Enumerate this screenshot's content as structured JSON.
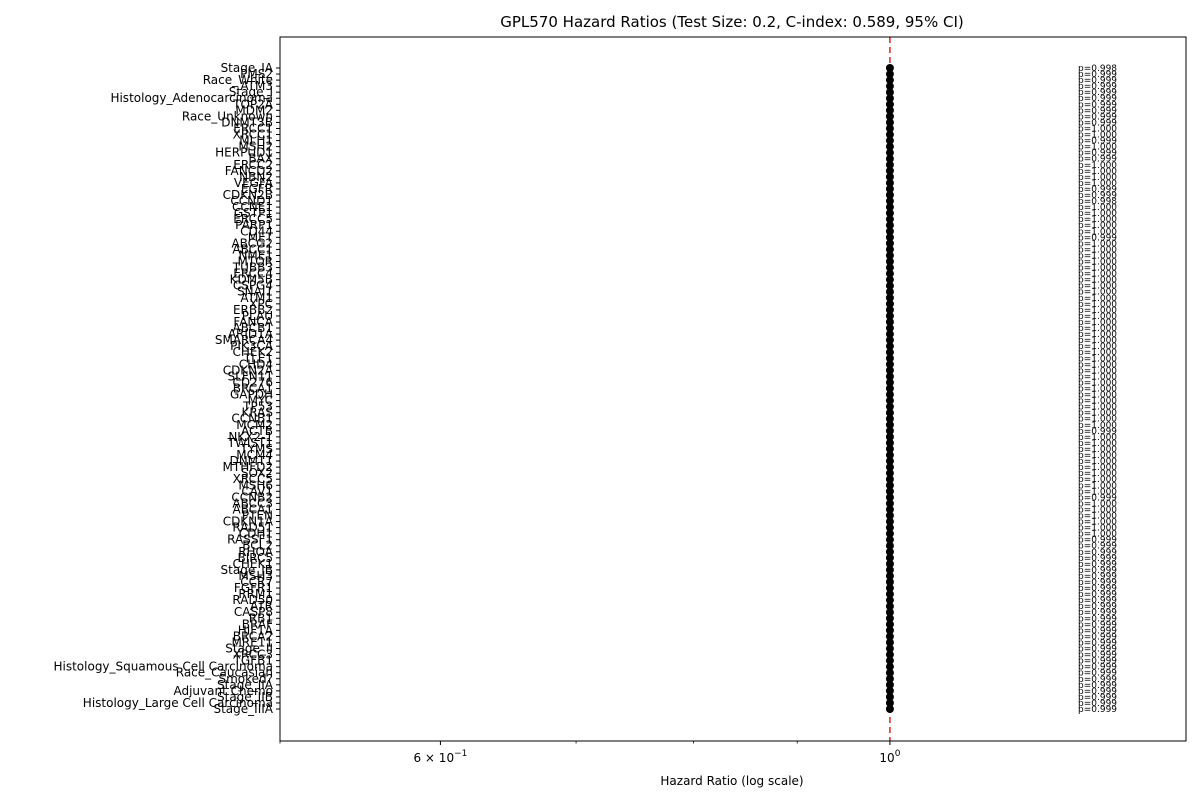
{
  "chart_data": {
    "type": "scatter",
    "title": "GPL570 Hazard Ratios (Test Size: 0.2, C-index: 0.589, 95% CI)",
    "xlabel": "Hazard Ratio (log scale)",
    "ylabel": "",
    "x_scale": "log",
    "xlim": [
      0.5,
      1.4
    ],
    "x_ticks": [
      {
        "value": 0.6,
        "label_base": "6 × 10",
        "label_exp": "−1"
      },
      {
        "value": 1.0,
        "label_base": "10",
        "label_exp": "0"
      }
    ],
    "x_minor_ticks": [
      0.5,
      0.7,
      0.8,
      0.9
    ],
    "reference_line": {
      "x": 1.0,
      "color": "#d62728",
      "style": "dashed"
    },
    "marker_color": "#000000",
    "grid": false,
    "legend": "none",
    "categories": [
      "Stage_IA",
      "PMS2",
      "Race_White",
      "ATM3",
      "Stage_I",
      "Histology_Adenocarcinoma",
      "TOP2A",
      "MDM2",
      "Race_Unknown",
      "DNMT3B",
      "ERCC1",
      "XRCC1",
      "MLH1",
      "MSH2",
      "HERPUD1",
      "BAX",
      "ERCC2",
      "FANCD2",
      "NBN2",
      "VEGFA",
      "EGFR",
      "CDKN2B",
      "CCND1",
      "CCNE1",
      "GSTP1",
      "ERCC5",
      "PARP1",
      "CD44",
      "MET",
      "ABCG2",
      "ABCC1",
      "NME1",
      "MTOR",
      "TUBB3",
      "ERCC4",
      "KDM5B",
      "CSPG4",
      "SNAI1",
      "ATM1",
      "XPC",
      "ERBB2",
      "PLAU",
      "FANCA",
      "ABCB1",
      "ARID1A",
      "SMARCA4",
      "PIK3CA",
      "CHEK2",
      "TLE1",
      "CHD4",
      "CDKN2A",
      "SLFN11",
      "CD276",
      "BRCA1",
      "GAPDH",
      "MYC",
      "TP53",
      "KRAS",
      "CCNB1",
      "MCM2",
      "ACTB",
      "NKX2-1",
      "TWIST1",
      "TYMS",
      "MCM4",
      "DNMT1",
      "MTHFD2",
      "SOX2",
      "XRCC5",
      "MSH6",
      "CAV1",
      "CCNB2",
      "ABCC3",
      "ABCA1",
      "PTEN",
      "CDKN1A",
      "RAD51",
      "CDH1",
      "RASSF1",
      "BCL2",
      "RHOA",
      "BIRC5",
      "CHEK1",
      "Stage_IB",
      "MSH3",
      "CCR7",
      "FGFR1",
      "RRM1",
      "RAD50",
      "ATR",
      "CASP8",
      "RB1",
      "BRAF",
      "HIF1A",
      "BRCA2",
      "MRE11",
      "Stage_II",
      "XRCC3",
      "TGFB1",
      "Histology_Squamous Cell Carcinoma",
      "Race_Caucasian",
      "Smoked?",
      "Stage_IIA",
      "Adjuvant Chemo",
      "Stage_IIB",
      "Histology_Large Cell Carcinoma",
      "Stage_IIIA"
    ],
    "hazard_ratios": [
      1,
      1,
      1,
      1,
      1,
      1,
      1,
      1,
      1,
      1,
      1,
      1,
      1,
      1,
      1,
      1,
      1,
      1,
      1,
      1,
      1,
      1,
      1,
      1,
      1,
      1,
      1,
      1,
      1,
      1,
      1,
      1,
      1,
      1,
      1,
      1,
      1,
      1,
      1,
      1,
      1,
      1,
      1,
      1,
      1,
      1,
      1,
      1,
      1,
      1,
      1,
      1,
      1,
      1,
      1,
      1,
      1,
      1,
      1,
      1,
      1,
      1,
      1,
      1,
      1,
      1,
      1,
      1,
      1,
      1,
      1,
      1,
      1,
      1,
      1,
      1,
      1,
      1,
      1,
      1,
      1,
      1,
      1,
      1,
      1,
      1,
      1,
      1,
      1,
      1,
      1,
      1,
      1,
      1,
      1,
      1,
      1,
      1,
      1,
      1,
      1,
      1,
      1,
      1,
      1,
      1,
      1
    ],
    "p_values": [
      "p=0.998",
      "p=0.999",
      "p=0.999",
      "p=0.999",
      "p=0.999",
      "p=0.999",
      "p=0.999",
      "p=0.999",
      "p=0.999",
      "p=0.999",
      "p=1.000",
      "p=1.000",
      "p=0.999",
      "p=1.000",
      "p=0.999",
      "p=0.999",
      "p=1.000",
      "p=1.000",
      "p=1.000",
      "p=1.000",
      "p=0.999",
      "p=0.999",
      "p=0.998",
      "p=1.000",
      "p=1.000",
      "p=1.000",
      "p=1.000",
      "p=1.000",
      "p=0.999",
      "p=1.000",
      "p=1.000",
      "p=1.000",
      "p=1.000",
      "p=1.000",
      "p=1.000",
      "p=1.000",
      "p=1.000",
      "p=1.000",
      "p=1.000",
      "p=1.000",
      "p=1.000",
      "p=1.000",
      "p=1.000",
      "p=1.000",
      "p=1.000",
      "p=1.000",
      "p=1.000",
      "p=1.000",
      "p=1.000",
      "p=1.000",
      "p=1.000",
      "p=1.000",
      "p=1.000",
      "p=1.000",
      "p=1.000",
      "p=1.000",
      "p=1.000",
      "p=1.000",
      "p=1.000",
      "p=1.000",
      "p=0.999",
      "p=1.000",
      "p=1.000",
      "p=1.000",
      "p=1.000",
      "p=1.000",
      "p=1.000",
      "p=1.000",
      "p=1.000",
      "p=1.000",
      "p=1.000",
      "p=0.999",
      "p=1.000",
      "p=1.000",
      "p=1.000",
      "p=1.000",
      "p=1.000",
      "p=1.000",
      "p=0.999",
      "p=0.999",
      "p=0.999",
      "p=0.999",
      "p=0.999",
      "p=0.999",
      "p=0.999",
      "p=0.999",
      "p=0.999",
      "p=0.999",
      "p=0.999",
      "p=0.999",
      "p=0.999",
      "p=0.999",
      "p=0.999",
      "p=0.999",
      "p=0.999",
      "p=0.999",
      "p=0.999",
      "p=0.999",
      "p=0.999",
      "p=0.999",
      "p=0.999",
      "p=0.999",
      "p=0.999",
      "p=0.999",
      "p=0.999",
      "p=0.999",
      "p=0.999"
    ]
  }
}
